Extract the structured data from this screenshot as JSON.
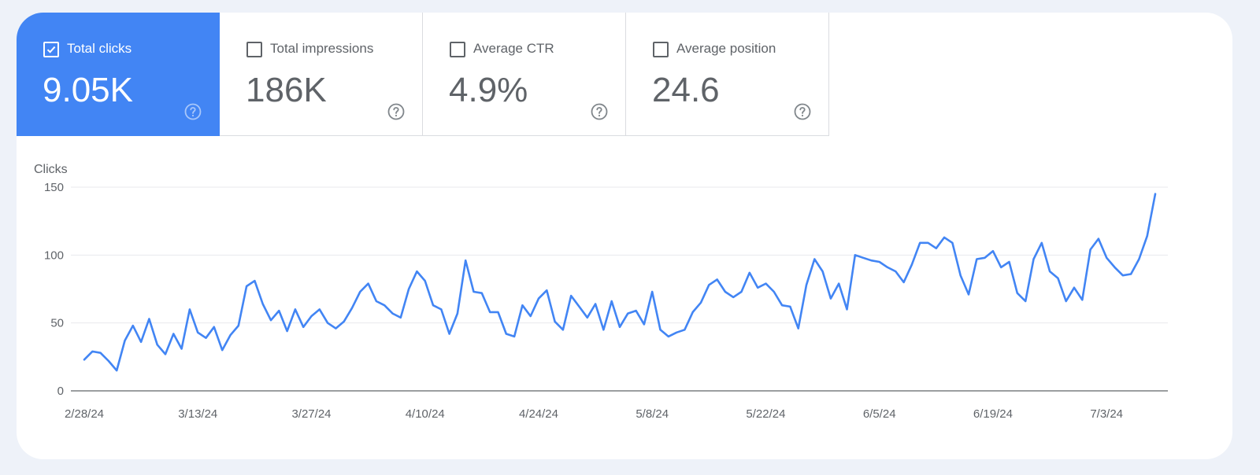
{
  "tiles": [
    {
      "label": "Total clicks",
      "value": "9.05K",
      "checked": true
    },
    {
      "label": "Total impressions",
      "value": "186K",
      "checked": false
    },
    {
      "label": "Average CTR",
      "value": "4.9%",
      "checked": false
    },
    {
      "label": "Average position",
      "value": "24.6",
      "checked": false
    }
  ],
  "colors": {
    "accent": "#4285f4",
    "line": "#4285f4",
    "page_bg": "#eef2f9",
    "grid": "#e8eaed",
    "axis": "#5f6368"
  },
  "icons": {
    "checkbox_checked": "checkbox-checked-icon",
    "checkbox_unchecked": "checkbox-unchecked-icon",
    "help": "help-circle-icon"
  },
  "chart_data": {
    "type": "line",
    "ylabel": "Clicks",
    "ylim": [
      0,
      150
    ],
    "yticks": [
      0,
      50,
      100,
      150
    ],
    "grid": true,
    "xticks": [
      "2/28/24",
      "3/13/24",
      "3/27/24",
      "4/10/24",
      "4/24/24",
      "5/8/24",
      "5/22/24",
      "6/5/24",
      "6/19/24",
      "7/3/24"
    ],
    "series": [
      {
        "values": [
          23,
          29,
          28,
          22,
          15,
          37,
          48,
          36,
          53,
          34,
          27,
          42,
          31,
          60,
          43,
          39,
          47,
          30,
          41,
          48,
          77,
          81,
          64,
          52,
          59,
          44,
          60,
          47,
          55,
          60,
          50,
          46,
          51,
          61,
          73,
          79,
          66,
          63,
          57,
          54,
          75,
          88,
          81,
          63,
          60,
          42,
          57,
          96,
          73,
          72,
          58,
          58,
          42,
          40,
          63,
          55,
          68,
          74,
          51,
          45,
          70,
          62,
          54,
          64,
          45,
          66,
          47,
          57,
          59,
          49,
          73,
          45,
          40,
          43,
          45,
          58,
          65,
          78,
          82,
          73,
          69,
          73,
          87,
          76,
          79,
          73,
          63,
          62,
          46,
          78,
          97,
          88,
          68,
          79,
          60,
          100,
          98,
          96,
          95,
          91,
          88,
          80,
          93,
          109,
          109,
          105,
          113,
          109,
          85,
          71,
          97,
          98,
          103,
          91,
          95,
          72,
          66,
          97,
          109,
          88,
          83,
          66,
          76,
          67,
          104,
          112,
          98,
          91,
          85,
          86,
          97,
          114,
          145
        ]
      }
    ]
  }
}
